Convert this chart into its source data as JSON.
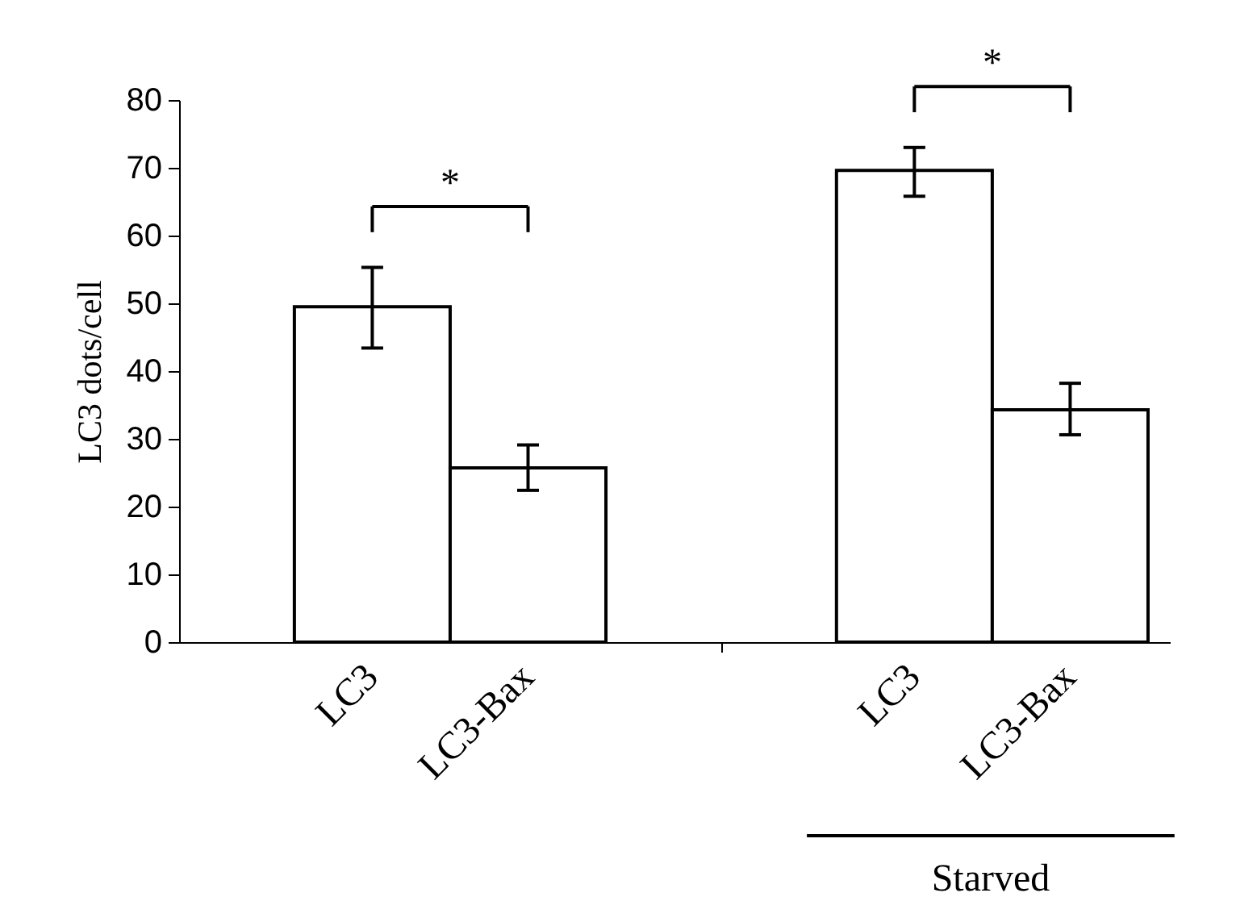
{
  "chart_data": {
    "type": "bar",
    "ylabel": "LC3 dots/cell",
    "categories": [
      "LC3",
      "LC3-Bax",
      "LC3",
      "LC3-Bax"
    ],
    "values": [
      49.5,
      25.7,
      69.6,
      34.3
    ],
    "errors": [
      [
        43.4,
        55.3
      ],
      [
        22.4,
        29.1
      ],
      [
        65.8,
        73.0
      ],
      [
        30.6,
        38.2
      ]
    ],
    "color": "#ffffff",
    "ylim": [
      0,
      80
    ],
    "yticks": [
      0,
      10,
      20,
      30,
      40,
      50,
      60,
      70,
      80
    ],
    "annotations": [
      "*",
      "*",
      "Starved"
    ]
  }
}
